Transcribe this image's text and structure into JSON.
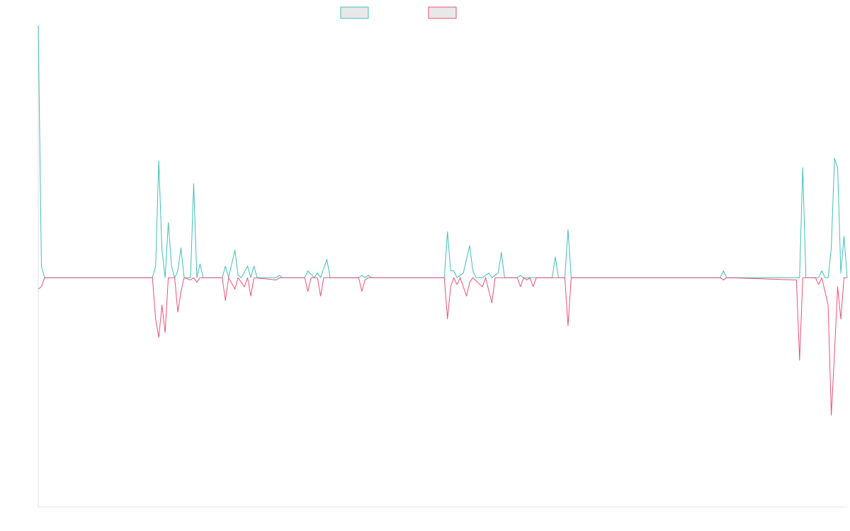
{
  "chart_data": {
    "type": "line",
    "title": "",
    "xlabel": "",
    "ylabel": "",
    "grid": false,
    "legend_position": "top-center",
    "x_count": 256,
    "ylim": [
      -1,
      1.1
    ],
    "series": [
      {
        "color": "#3fbfba",
        "points": [
          [
            0,
            1.1
          ],
          [
            1,
            0.05
          ],
          [
            2,
            0
          ],
          [
            36,
            0
          ],
          [
            37,
            0.05
          ],
          [
            38,
            0.51
          ],
          [
            39,
            0.12
          ],
          [
            40,
            0
          ],
          [
            41,
            0.24
          ],
          [
            42,
            0.05
          ],
          [
            43,
            0
          ],
          [
            44,
            0.03
          ],
          [
            45,
            0.13
          ],
          [
            46,
            0
          ],
          [
            48,
            0
          ],
          [
            49,
            0.41
          ],
          [
            50,
            0
          ],
          [
            51,
            0.06
          ],
          [
            52,
            0
          ],
          [
            58,
            0
          ],
          [
            59,
            0.05
          ],
          [
            60,
            0
          ],
          [
            62,
            0.12
          ],
          [
            63,
            0.01
          ],
          [
            64,
            0
          ],
          [
            66,
            0.05
          ],
          [
            67,
            0
          ],
          [
            68,
            0.05
          ],
          [
            69,
            0
          ],
          [
            75,
            0
          ],
          [
            76,
            0.01
          ],
          [
            77,
            0
          ],
          [
            84,
            0
          ],
          [
            85,
            0.03
          ],
          [
            87,
            0
          ],
          [
            88,
            0.02
          ],
          [
            89,
            0
          ],
          [
            91,
            0.08
          ],
          [
            92,
            0
          ],
          [
            101,
            0
          ],
          [
            102,
            0.01
          ],
          [
            103,
            0
          ],
          [
            104,
            0.01
          ],
          [
            105,
            0
          ],
          [
            128,
            0
          ],
          [
            129,
            0.2
          ],
          [
            130,
            0.03
          ],
          [
            131,
            0.03
          ],
          [
            132,
            0
          ],
          [
            134,
            0.02
          ],
          [
            136,
            0.14
          ],
          [
            137,
            0.03
          ],
          [
            138,
            0
          ],
          [
            140,
            0
          ],
          [
            142,
            0.02
          ],
          [
            143,
            0
          ],
          [
            145,
            0.02
          ],
          [
            146,
            0.11
          ],
          [
            147,
            0
          ],
          [
            151,
            0
          ],
          [
            152,
            0.01
          ],
          [
            153,
            0
          ],
          [
            162,
            0
          ],
          [
            163,
            0.09
          ],
          [
            164,
            0
          ],
          [
            166,
            0
          ],
          [
            167,
            0.21
          ],
          [
            168,
            0
          ],
          [
            215,
            0
          ],
          [
            216,
            0.03
          ],
          [
            217,
            0
          ],
          [
            240,
            0
          ],
          [
            241,
            0.48
          ],
          [
            242,
            0
          ],
          [
            246,
            0
          ],
          [
            247,
            0.03
          ],
          [
            248,
            0
          ],
          [
            249,
            0
          ],
          [
            250,
            0.13
          ],
          [
            251,
            0.52
          ],
          [
            252,
            0.48
          ],
          [
            253,
            0.02
          ],
          [
            254,
            0.18
          ],
          [
            255,
            0
          ]
        ]
      },
      {
        "color": "#f05079",
        "points": [
          [
            0,
            -0.05
          ],
          [
            1,
            -0.04
          ],
          [
            2,
            0
          ],
          [
            36,
            0
          ],
          [
            37,
            -0.18
          ],
          [
            38,
            -0.26
          ],
          [
            39,
            -0.12
          ],
          [
            40,
            -0.24
          ],
          [
            41,
            0
          ],
          [
            43,
            0
          ],
          [
            44,
            -0.15
          ],
          [
            45,
            -0.06
          ],
          [
            46,
            0
          ],
          [
            48,
            -0.01
          ],
          [
            49,
            0
          ],
          [
            50,
            -0.02
          ],
          [
            51,
            0
          ],
          [
            58,
            0
          ],
          [
            59,
            -0.1
          ],
          [
            60,
            0
          ],
          [
            62,
            -0.05
          ],
          [
            63,
            0
          ],
          [
            65,
            -0.04
          ],
          [
            66,
            0
          ],
          [
            67,
            -0.08
          ],
          [
            68,
            0
          ],
          [
            75,
            -0.01
          ],
          [
            76,
            0
          ],
          [
            84,
            0
          ],
          [
            85,
            -0.06
          ],
          [
            86,
            0
          ],
          [
            88,
            0
          ],
          [
            89,
            -0.08
          ],
          [
            90,
            0
          ],
          [
            101,
            0
          ],
          [
            102,
            -0.06
          ],
          [
            103,
            -0.01
          ],
          [
            104,
            0
          ],
          [
            128,
            0
          ],
          [
            129,
            -0.18
          ],
          [
            130,
            -0.04
          ],
          [
            131,
            0
          ],
          [
            132,
            -0.03
          ],
          [
            133,
            0
          ],
          [
            135,
            -0.08
          ],
          [
            136,
            -0.02
          ],
          [
            137,
            0
          ],
          [
            140,
            -0.04
          ],
          [
            141,
            0
          ],
          [
            143,
            -0.11
          ],
          [
            144,
            0
          ],
          [
            151,
            0
          ],
          [
            152,
            -0.04
          ],
          [
            153,
            0
          ],
          [
            154,
            -0.01
          ],
          [
            155,
            0
          ],
          [
            156,
            -0.04
          ],
          [
            157,
            0
          ],
          [
            166,
            0
          ],
          [
            167,
            -0.21
          ],
          [
            168,
            0
          ],
          [
            215,
            0
          ],
          [
            216,
            -0.01
          ],
          [
            217,
            0
          ],
          [
            239,
            -0.01
          ],
          [
            240,
            -0.36
          ],
          [
            241,
            0
          ],
          [
            245,
            0
          ],
          [
            246,
            -0.03
          ],
          [
            247,
            0
          ],
          [
            249,
            -0.12
          ],
          [
            250,
            -0.6
          ],
          [
            251,
            -0.33
          ],
          [
            252,
            -0.04
          ],
          [
            253,
            -0.18
          ],
          [
            254,
            0
          ],
          [
            255,
            0
          ]
        ]
      }
    ]
  }
}
